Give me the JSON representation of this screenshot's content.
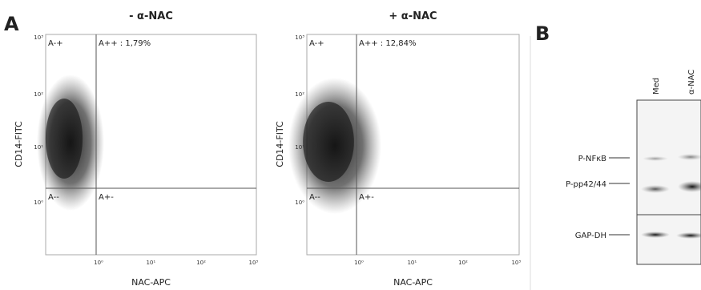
{
  "panel_a": {
    "label": "A",
    "plots": [
      {
        "title": "- α-NAC",
        "y_label": "CD14-FITC",
        "x_label": "NAC-APC",
        "gates": [
          "A-+",
          "A++ : 1,79%",
          "A--",
          "A+-"
        ],
        "x_ticks": [
          "10⁰",
          "10¹",
          "10²",
          "10³"
        ],
        "y_ticks": [
          "10³",
          "10²",
          "10¹",
          "10⁰"
        ]
      },
      {
        "title": "+ α-NAC",
        "y_label": "CD14-FITC",
        "x_label": "NAC-APC",
        "gates": [
          "A-+",
          "A++ : 12,84%",
          "A--",
          "A+-"
        ],
        "x_ticks": [
          "10⁰",
          "10¹",
          "10²",
          "10³"
        ],
        "y_ticks": [
          "10³",
          "10²",
          "10¹",
          "10⁰"
        ]
      }
    ]
  },
  "panel_b": {
    "label": "B",
    "lanes": [
      "Med",
      "α-NAC"
    ],
    "bands": [
      "P-NFκB",
      "P-pp42/44",
      "GAP-DH"
    ]
  }
}
